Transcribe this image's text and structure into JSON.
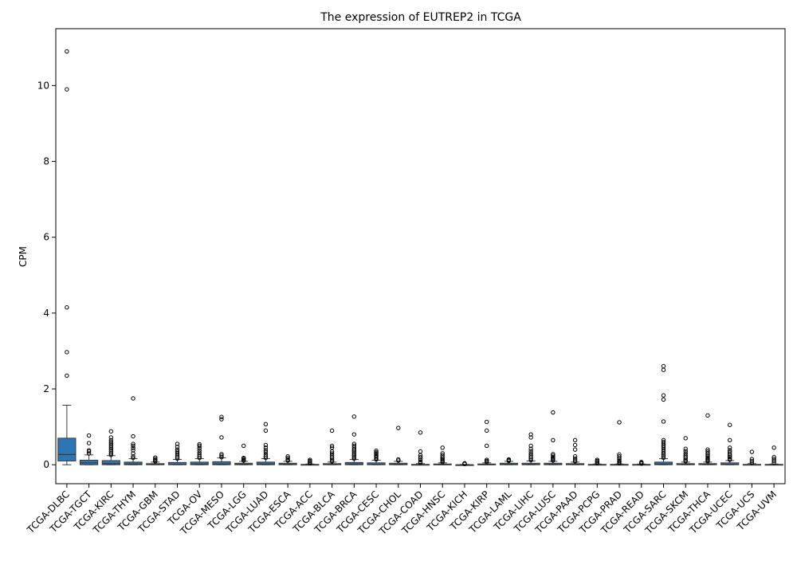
{
  "chart_data": {
    "type": "box",
    "title": "The expression of EUTREP2 in TCGA",
    "xlabel": "",
    "ylabel": "CPM",
    "ylim": [
      -0.5,
      11.5
    ],
    "yticks": [
      0,
      2,
      4,
      6,
      8,
      10
    ],
    "grid": false,
    "box_color": "#2e75b6",
    "categories": [
      "TCGA-DLBC",
      "TCGA-TGCT",
      "TCGA-KIRC",
      "TCGA-THYM",
      "TCGA-GBM",
      "TCGA-STAD",
      "TCGA-OV",
      "TCGA-MESO",
      "TCGA-LGG",
      "TCGA-LUAD",
      "TCGA-ESCA",
      "TCGA-ACC",
      "TCGA-BLCA",
      "TCGA-BRCA",
      "TCGA-CESC",
      "TCGA-CHOL",
      "TCGA-COAD",
      "TCGA-HNSC",
      "TCGA-KICH",
      "TCGA-KIRP",
      "TCGA-LAML",
      "TCGA-LIHC",
      "TCGA-LUSC",
      "TCGA-PAAD",
      "TCGA-PCPG",
      "TCGA-PRAD",
      "TCGA-READ",
      "TCGA-SARC",
      "TCGA-SKCM",
      "TCGA-THCA",
      "TCGA-UCEC",
      "TCGA-UCS",
      "TCGA-UVM"
    ],
    "boxes": [
      {
        "min": 0.0,
        "q1": 0.1,
        "median": 0.27,
        "q3": 0.7,
        "max": 1.57,
        "outliers": [
          10.9,
          9.9,
          4.15,
          2.97,
          2.35
        ]
      },
      {
        "min": 0.0,
        "q1": 0.0,
        "median": 0.05,
        "q3": 0.12,
        "max": 0.26,
        "outliers": [
          0.3,
          0.35,
          0.38,
          0.57,
          0.77
        ]
      },
      {
        "min": 0.0,
        "q1": 0.0,
        "median": 0.03,
        "q3": 0.11,
        "max": 0.24,
        "outliers": [
          0.26,
          0.3,
          0.35,
          0.4,
          0.45,
          0.5,
          0.55,
          0.6,
          0.65,
          0.72,
          0.88
        ]
      },
      {
        "min": 0.0,
        "q1": 0.0,
        "median": 0.02,
        "q3": 0.07,
        "max": 0.16,
        "outliers": [
          0.18,
          0.22,
          0.3,
          0.38,
          0.44,
          0.5,
          0.55,
          0.75,
          1.75
        ]
      },
      {
        "min": 0.0,
        "q1": 0.0,
        "median": 0.01,
        "q3": 0.03,
        "max": 0.07,
        "outliers": [
          0.09,
          0.12,
          0.15,
          0.19
        ]
      },
      {
        "min": 0.0,
        "q1": 0.0,
        "median": 0.01,
        "q3": 0.06,
        "max": 0.14,
        "outliers": [
          0.16,
          0.2,
          0.25,
          0.3,
          0.35,
          0.4,
          0.47,
          0.55
        ]
      },
      {
        "min": 0.0,
        "q1": 0.0,
        "median": 0.02,
        "q3": 0.07,
        "max": 0.16,
        "outliers": [
          0.18,
          0.22,
          0.27,
          0.32,
          0.38,
          0.44,
          0.5,
          0.54
        ]
      },
      {
        "min": 0.0,
        "q1": 0.0,
        "median": 0.02,
        "q3": 0.08,
        "max": 0.18,
        "outliers": [
          0.2,
          0.24,
          0.28,
          0.72,
          1.2,
          1.26
        ]
      },
      {
        "min": 0.0,
        "q1": 0.0,
        "median": 0.01,
        "q3": 0.04,
        "max": 0.09,
        "outliers": [
          0.11,
          0.13,
          0.16,
          0.18,
          0.5
        ]
      },
      {
        "min": 0.0,
        "q1": 0.0,
        "median": 0.02,
        "q3": 0.07,
        "max": 0.16,
        "outliers": [
          0.18,
          0.22,
          0.27,
          0.33,
          0.38,
          0.45,
          0.52,
          0.9,
          1.07
        ]
      },
      {
        "min": 0.0,
        "q1": 0.0,
        "median": 0.01,
        "q3": 0.04,
        "max": 0.09,
        "outliers": [
          0.11,
          0.14,
          0.18,
          0.22
        ]
      },
      {
        "min": 0.0,
        "q1": 0.0,
        "median": 0.0,
        "q3": 0.01,
        "max": 0.02,
        "outliers": [
          0.04,
          0.07,
          0.1,
          0.13
        ]
      },
      {
        "min": 0.0,
        "q1": 0.0,
        "median": 0.01,
        "q3": 0.03,
        "max": 0.07,
        "outliers": [
          0.09,
          0.12,
          0.16,
          0.2,
          0.25,
          0.3,
          0.35,
          0.45,
          0.5,
          0.9
        ]
      },
      {
        "min": 0.0,
        "q1": 0.0,
        "median": 0.02,
        "q3": 0.06,
        "max": 0.14,
        "outliers": [
          0.16,
          0.2,
          0.24,
          0.28,
          0.32,
          0.36,
          0.4,
          0.45,
          0.5,
          0.55,
          0.8,
          1.27
        ]
      },
      {
        "min": 0.0,
        "q1": 0.0,
        "median": 0.01,
        "q3": 0.05,
        "max": 0.12,
        "outliers": [
          0.14,
          0.17,
          0.2,
          0.23,
          0.26,
          0.3,
          0.33,
          0.37
        ]
      },
      {
        "min": 0.0,
        "q1": 0.0,
        "median": 0.01,
        "q3": 0.04,
        "max": 0.09,
        "outliers": [
          0.11,
          0.14,
          0.97
        ]
      },
      {
        "min": 0.0,
        "q1": 0.0,
        "median": 0.0,
        "q3": 0.01,
        "max": 0.03,
        "outliers": [
          0.05,
          0.08,
          0.12,
          0.16,
          0.2,
          0.25,
          0.35,
          0.85
        ]
      },
      {
        "min": 0.0,
        "q1": 0.0,
        "median": 0.0,
        "q3": 0.02,
        "max": 0.05,
        "outliers": [
          0.07,
          0.1,
          0.13,
          0.16,
          0.2,
          0.25,
          0.3,
          0.45
        ]
      },
      {
        "min": 0.0,
        "q1": 0.0,
        "median": 0.0,
        "q3": 0.0,
        "max": 0.01,
        "outliers": [
          0.02,
          0.03,
          0.04
        ]
      },
      {
        "min": 0.0,
        "q1": 0.0,
        "median": 0.0,
        "q3": 0.02,
        "max": 0.05,
        "outliers": [
          0.07,
          0.1,
          0.13,
          0.5,
          0.9,
          1.13
        ]
      },
      {
        "min": 0.0,
        "q1": 0.0,
        "median": 0.01,
        "q3": 0.04,
        "max": 0.09,
        "outliers": [
          0.1,
          0.12,
          0.14
        ]
      },
      {
        "min": 0.0,
        "q1": 0.0,
        "median": 0.01,
        "q3": 0.04,
        "max": 0.1,
        "outliers": [
          0.12,
          0.16,
          0.2,
          0.25,
          0.3,
          0.36,
          0.42,
          0.5,
          0.72,
          0.8
        ]
      },
      {
        "min": 0.0,
        "q1": 0.0,
        "median": 0.01,
        "q3": 0.04,
        "max": 0.09,
        "outliers": [
          0.11,
          0.14,
          0.17,
          0.2,
          0.24,
          0.28,
          0.65,
          1.38
        ]
      },
      {
        "min": 0.0,
        "q1": 0.0,
        "median": 0.01,
        "q3": 0.03,
        "max": 0.07,
        "outliers": [
          0.09,
          0.12,
          0.16,
          0.22,
          0.4,
          0.52,
          0.65
        ]
      },
      {
        "min": 0.0,
        "q1": 0.0,
        "median": 0.0,
        "q3": 0.01,
        "max": 0.02,
        "outliers": [
          0.04,
          0.07,
          0.1,
          0.13
        ]
      },
      {
        "min": 0.0,
        "q1": 0.0,
        "median": 0.0,
        "q3": 0.01,
        "max": 0.02,
        "outliers": [
          0.04,
          0.07,
          0.1,
          0.14,
          0.18,
          0.22,
          0.27,
          1.12
        ]
      },
      {
        "min": 0.0,
        "q1": 0.0,
        "median": 0.0,
        "q3": 0.01,
        "max": 0.02,
        "outliers": [
          0.03,
          0.05,
          0.07
        ]
      },
      {
        "min": 0.0,
        "q1": 0.0,
        "median": 0.02,
        "q3": 0.07,
        "max": 0.16,
        "outliers": [
          0.18,
          0.22,
          0.26,
          0.3,
          0.35,
          0.4,
          0.45,
          0.5,
          0.55,
          0.6,
          0.65,
          1.14,
          1.72,
          1.83,
          2.5,
          2.6
        ]
      },
      {
        "min": 0.0,
        "q1": 0.0,
        "median": 0.01,
        "q3": 0.03,
        "max": 0.07,
        "outliers": [
          0.09,
          0.12,
          0.16,
          0.2,
          0.25,
          0.3,
          0.36,
          0.42,
          0.7
        ]
      },
      {
        "min": 0.0,
        "q1": 0.0,
        "median": 0.01,
        "q3": 0.03,
        "max": 0.07,
        "outliers": [
          0.09,
          0.12,
          0.15,
          0.18,
          0.22,
          0.26,
          0.3,
          0.35,
          0.4,
          1.3
        ]
      },
      {
        "min": 0.0,
        "q1": 0.0,
        "median": 0.01,
        "q3": 0.05,
        "max": 0.11,
        "outliers": [
          0.13,
          0.16,
          0.2,
          0.24,
          0.28,
          0.33,
          0.38,
          0.45,
          0.65,
          1.05
        ]
      },
      {
        "min": 0.0,
        "q1": 0.0,
        "median": 0.0,
        "q3": 0.01,
        "max": 0.03,
        "outliers": [
          0.05,
          0.1,
          0.15,
          0.34
        ]
      },
      {
        "min": 0.0,
        "q1": 0.0,
        "median": 0.0,
        "q3": 0.01,
        "max": 0.02,
        "outliers": [
          0.05,
          0.1,
          0.15,
          0.2,
          0.45
        ]
      }
    ]
  }
}
